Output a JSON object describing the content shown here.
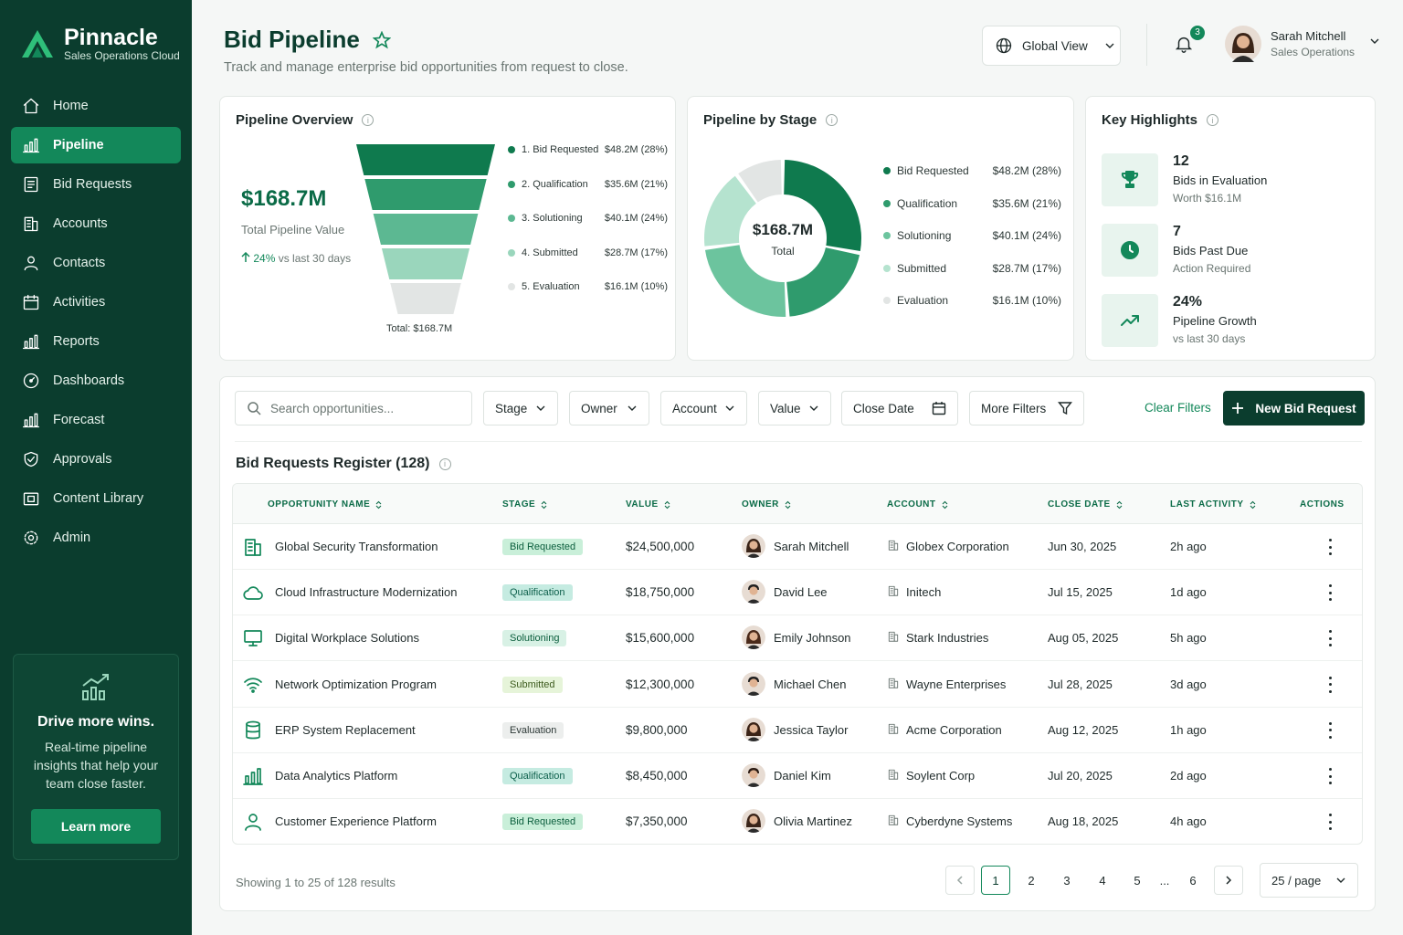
{
  "brand": {
    "name": "Pinnacle",
    "tagline": "Sales Operations Cloud",
    "accent": "#13885a",
    "dark": "#0b3d2e"
  },
  "nav": {
    "items": [
      {
        "label": "Home",
        "icon": "home-icon"
      },
      {
        "label": "Pipeline",
        "icon": "bar-chart-icon",
        "active": true
      },
      {
        "label": "Bid Requests",
        "icon": "list-icon"
      },
      {
        "label": "Accounts",
        "icon": "building-icon"
      },
      {
        "label": "Contacts",
        "icon": "user-icon"
      },
      {
        "label": "Activities",
        "icon": "calendar-icon"
      },
      {
        "label": "Reports",
        "icon": "bar-chart-icon"
      },
      {
        "label": "Dashboards",
        "icon": "gauge-icon"
      },
      {
        "label": "Forecast",
        "icon": "bar-chart-icon"
      },
      {
        "label": "Approvals",
        "icon": "shield-check-icon"
      },
      {
        "label": "Content Library",
        "icon": "folder-icon"
      },
      {
        "label": "Admin",
        "icon": "gear-icon"
      }
    ]
  },
  "promo": {
    "title": "Drive more wins.",
    "desc": "Real-time pipeline insights that help your team close faster.",
    "button": "Learn more"
  },
  "header": {
    "title": "Bid Pipeline",
    "subtitle": "Track and manage enterprise bid opportunities from request to close.",
    "view": "Global View",
    "notifications": "3",
    "user_name": "Sarah Mitchell",
    "user_role": "Sales Operations"
  },
  "overview": {
    "title": "Pipeline Overview",
    "value": "$168.7M",
    "caption": "Total Pipeline Value",
    "trend_pct": "24%",
    "trend_text": "vs last 30 days",
    "funnel_total": "Total: $168.7M",
    "stages": [
      {
        "label": "1. Bid Requested",
        "value": "$48.2M (28%)",
        "color": "#0f7a4e"
      },
      {
        "label": "2. Qualification",
        "value": "$35.6M (21%)",
        "color": "#2f9b6d"
      },
      {
        "label": "3. Solutioning",
        "value": "$40.1M (24%)",
        "color": "#5cb892"
      },
      {
        "label": "4. Submitted",
        "value": "$28.7M (17%)",
        "color": "#9ad6bc"
      },
      {
        "label": "5. Evaluation",
        "value": "$16.1M (10%)",
        "color": "#e2e5e4"
      }
    ]
  },
  "by_stage": {
    "title": "Pipeline by Stage",
    "center_value": "$168.7M",
    "center_label": "Total",
    "slices": [
      {
        "label": "Bid Requested",
        "value": "$48.2M (28%)",
        "pct": 28,
        "color": "#0f7a4e"
      },
      {
        "label": "Qualification",
        "value": "$35.6M (21%)",
        "pct": 21,
        "color": "#2f9b6d"
      },
      {
        "label": "Solutioning",
        "value": "$40.1M (24%)",
        "pct": 24,
        "color": "#6cc49e"
      },
      {
        "label": "Submitted",
        "value": "$28.7M (17%)",
        "pct": 17,
        "color": "#b5e3cf"
      },
      {
        "label": "Evaluation",
        "value": "$16.1M (10%)",
        "pct": 10,
        "color": "#e2e5e4"
      }
    ]
  },
  "highlights": {
    "title": "Key Highlights",
    "items": [
      {
        "num": "12",
        "label": "Bids in Evaluation",
        "sub": "Worth $16.1M",
        "icon": "trophy-icon"
      },
      {
        "num": "7",
        "label": "Bids Past Due",
        "sub": "Action Required",
        "icon": "clock-icon"
      },
      {
        "num": "24%",
        "label": "Pipeline Growth",
        "sub": "vs last 30 days",
        "icon": "trend-up-icon"
      }
    ]
  },
  "filters": {
    "search_placeholder": "Search opportunities...",
    "stage": "Stage",
    "owner": "Owner",
    "account": "Account",
    "value": "Value",
    "close_date": "Close Date",
    "more": "More Filters",
    "clear": "Clear Filters",
    "new": "New Bid Request"
  },
  "register": {
    "title": "Bid Requests Register (128)",
    "columns": [
      "OPPORTUNITY NAME",
      "STAGE",
      "VALUE",
      "OWNER",
      "ACCOUNT",
      "CLOSE DATE",
      "LAST ACTIVITY",
      "ACTIONS"
    ],
    "rows": [
      {
        "name": "Global Security Transformation",
        "icon": "building-icon",
        "stage": "Bid Requested",
        "value": "$24,500,000",
        "owner": "Sarah Mitchell",
        "account": "Globex Corporation",
        "close": "Jun 30, 2025",
        "activity": "2h ago"
      },
      {
        "name": "Cloud Infrastructure Modernization",
        "icon": "cloud-icon",
        "stage": "Qualification",
        "value": "$18,750,000",
        "owner": "David Lee",
        "account": "Initech",
        "close": "Jul 15, 2025",
        "activity": "1d ago"
      },
      {
        "name": "Digital Workplace Solutions",
        "icon": "monitor-icon",
        "stage": "Solutioning",
        "value": "$15,600,000",
        "owner": "Emily Johnson",
        "account": "Stark Industries",
        "close": "Aug 05, 2025",
        "activity": "5h ago"
      },
      {
        "name": "Network Optimization Program",
        "icon": "wifi-icon",
        "stage": "Submitted",
        "value": "$12,300,000",
        "owner": "Michael Chen",
        "account": "Wayne Enterprises",
        "close": "Jul 28, 2025",
        "activity": "3d ago"
      },
      {
        "name": "ERP System Replacement",
        "icon": "database-icon",
        "stage": "Evaluation",
        "value": "$9,800,000",
        "owner": "Jessica Taylor",
        "account": "Acme Corporation",
        "close": "Aug 12, 2025",
        "activity": "1h ago"
      },
      {
        "name": "Data Analytics Platform",
        "icon": "bar-chart-icon",
        "stage": "Qualification",
        "value": "$8,450,000",
        "owner": "Daniel Kim",
        "account": "Soylent Corp",
        "close": "Jul 20, 2025",
        "activity": "2d ago"
      },
      {
        "name": "Customer Experience Platform",
        "icon": "user-icon",
        "stage": "Bid Requested",
        "value": "$7,350,000",
        "owner": "Olivia Martinez",
        "account": "Cyberdyne Systems",
        "close": "Aug 18, 2025",
        "activity": "4h ago"
      }
    ]
  },
  "pagination": {
    "showing": "Showing 1 to 25 of 128 results",
    "pages": [
      "1",
      "2",
      "3",
      "4",
      "5",
      "...",
      "6"
    ],
    "per_page": "25 / page"
  }
}
